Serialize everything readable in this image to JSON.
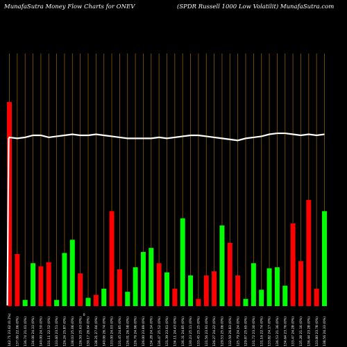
{
  "header": {
    "left": "MunafaSutra  Money Flow  Charts for ONEV",
    "right": "(SPDR Russell 1000   Low  Volatilit) MunafaSutra.com"
  },
  "chart_data": {
    "type": "bar",
    "ylim": [
      0,
      100
    ],
    "grid": true,
    "colors": {
      "up": "#00ff00",
      "down": "#ff0000",
      "line": "#ffffff",
      "grid": "#8b5a00"
    },
    "extra_label": "0",
    "series": [
      {
        "values": [
          100,
          25.5,
          3,
          21,
          19.5,
          21.5,
          3,
          26,
          32.5,
          16,
          4,
          5.5,
          8.5,
          46.5,
          18,
          7,
          19,
          26.5,
          28.5,
          21,
          16.5,
          8.5,
          43,
          15,
          3.5,
          15,
          17,
          39.5,
          31,
          15,
          3.5,
          21,
          8,
          18.5,
          19,
          10,
          40.5,
          22,
          52,
          8.5,
          46.5
        ],
        "direction": [
          "down",
          "down",
          "up",
          "up",
          "down",
          "down",
          "up",
          "up",
          "up",
          "down",
          "up",
          "down",
          "up",
          "down",
          "down",
          "up",
          "up",
          "up",
          "up",
          "down",
          "up",
          "down",
          "up",
          "up",
          "down",
          "down",
          "down",
          "up",
          "down",
          "down",
          "up",
          "up",
          "up",
          "up",
          "up",
          "up",
          "down",
          "down",
          "down",
          "down",
          "up"
        ]
      },
      {
        "values": [
          82,
          81.5,
          82,
          83,
          83,
          82,
          82.5,
          83,
          83.5,
          83,
          83,
          83.5,
          83,
          82.5,
          82,
          81.5,
          81.5,
          81.5,
          81.5,
          82,
          81.5,
          82,
          82.5,
          83,
          83,
          82.5,
          82,
          81.5,
          81,
          80.5,
          81.5,
          82,
          82.5,
          83.5,
          84,
          84,
          83.5,
          83,
          83.5,
          83,
          83.5
        ]
      }
    ],
    "tick_labels": [
      "142.71 23.62 (0.2%)",
      "137.06 22.06 (0%)",
      "136.74 21.01 (0%)",
      "134.06 24.33 (0%)",
      "140.00 24.50 (0%)",
      "131.11 22.52 (0%)",
      "133.60 23.51 (0%)",
      "126.24 25.87 (0%)",
      "138.03 25.06 (0%)",
      "126.50 25.63 (0%)",
      "130.17 26.04 (0%)",
      "138.21 27.04 (0%)",
      "140.06 26.74 (0%)",
      "133.00 24.03 (0%)",
      "131.45 24.85 (0%)",
      "126.01 26.58 (0%)",
      "126.76 24.96 (0%)",
      "126.00 23.89 (0%)",
      "134.28 24.14 (0%)",
      "136.47 25.52 (0%)",
      "131.39 23.61 (0%)",
      "134.11 24.43 (0%)",
      "136.31 24.85 (0%)",
      "130.23 25.11 (0%)",
      "133.45 25.25 (0%)",
      "131.56 23.91 (0%)",
      "126.27 24.22 (0%)",
      "129.53 25.06 (0%)",
      "132.50 26.83 (0%)",
      "125.79 24.24 (0%)",
      "129.87 25.65 (0%)",
      "131.72 23.30 (0%)",
      "131.16 22.74 (0%)",
      "133.82 24.17 (0%)",
      "136.53 21.36 (0%)",
      "134.64 23.76 (0%)",
      "133.47 24.28 (0%)",
      "135.28 21.16 (0%)",
      "136.44 23.28 (0%)",
      "133.80 23.78 (0%)",
      "138.56 24.33 (0%)"
    ]
  }
}
